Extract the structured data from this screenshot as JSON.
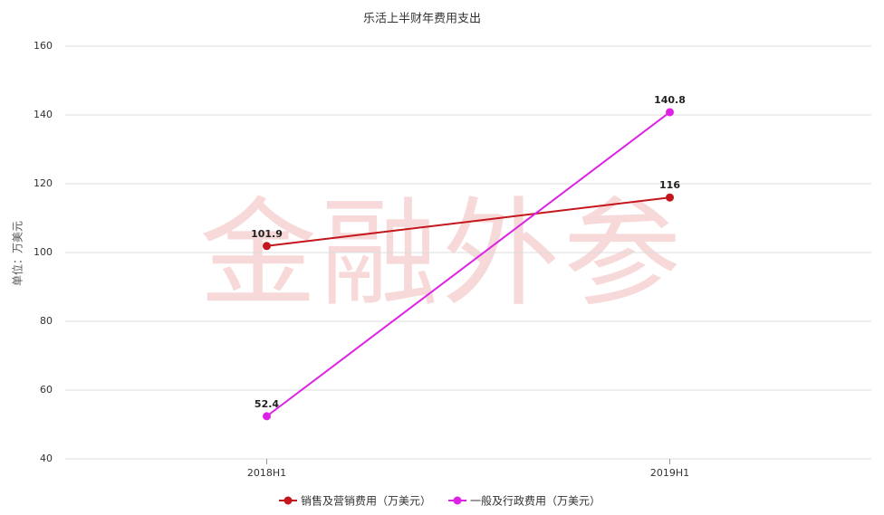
{
  "chart_data": {
    "type": "line",
    "title": "乐活上半财年费用支出",
    "y_label": "单位：万美元",
    "watermark": "金融外参",
    "categories": [
      "2018H1",
      "2019H1"
    ],
    "series": [
      {
        "name": "销售及营销费用（万美元）",
        "color": "#c4161c",
        "values": [
          101.9,
          116
        ]
      },
      {
        "name": "一般及行政费用（万美元）",
        "color": "#dd22e6",
        "values": [
          52.4,
          140.8
        ]
      }
    ],
    "ylim": [
      40,
      160
    ],
    "yticks": [
      40,
      60,
      80,
      100,
      120,
      140,
      160
    ],
    "grid": true,
    "legend": "bottom"
  }
}
